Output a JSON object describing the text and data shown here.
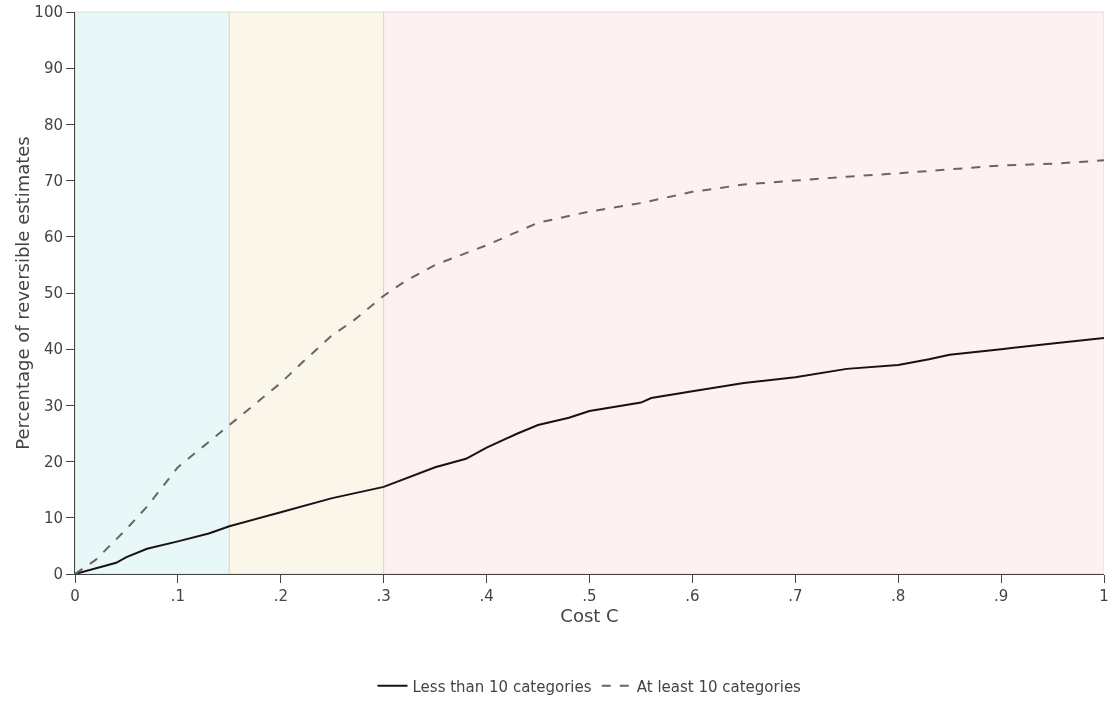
{
  "chart_data": {
    "type": "line",
    "xlabel": "Cost C",
    "ylabel": "Percentage of reversible estimates",
    "series": [
      {
        "name": "Less than 10 categories",
        "color": "#1a1018",
        "line_style": "solid",
        "x": [
          0,
          0.04,
          0.05,
          0.07,
          0.1,
          0.13,
          0.15,
          0.2,
          0.25,
          0.3,
          0.35,
          0.38,
          0.4,
          0.43,
          0.45,
          0.48,
          0.5,
          0.55,
          0.56,
          0.6,
          0.65,
          0.7,
          0.75,
          0.8,
          0.83,
          0.85,
          0.9,
          0.95,
          1
        ],
        "values": [
          0,
          2,
          3,
          4.5,
          5.8,
          7.2,
          8.5,
          11,
          13.5,
          15.5,
          19,
          20.5,
          22.5,
          25,
          26.5,
          27.8,
          29,
          30.5,
          31.3,
          32.5,
          34,
          35,
          36.5,
          37.2,
          38.2,
          39,
          40,
          41,
          42
        ]
      },
      {
        "name": "At least 10 categories",
        "color": "#6a6468",
        "line_style": "dashed",
        "x": [
          0,
          0.02,
          0.05,
          0.07,
          0.1,
          0.12,
          0.15,
          0.17,
          0.2,
          0.22,
          0.25,
          0.27,
          0.3,
          0.32,
          0.35,
          0.4,
          0.45,
          0.5,
          0.55,
          0.6,
          0.65,
          0.7,
          0.75,
          0.8,
          0.85,
          0.9,
          0.95,
          1
        ],
        "values": [
          0,
          2.5,
          8,
          12,
          19,
          22,
          26.5,
          29.5,
          34,
          37.5,
          42.5,
          45,
          49.5,
          52,
          55,
          58.5,
          62.5,
          64.5,
          66,
          68,
          69.3,
          70,
          70.7,
          71.3,
          72,
          72.7,
          73,
          73.6
        ]
      }
    ],
    "bands": [
      {
        "axis": "x",
        "from": 0,
        "to": 0.15,
        "color": "#e8f7f7"
      },
      {
        "axis": "x",
        "from": 0.15,
        "to": 0.3,
        "color": "#fbf6ea"
      },
      {
        "axis": "x",
        "from": 0.3,
        "to": 1,
        "color": "#fdf1f1"
      }
    ],
    "xlim": [
      0,
      1
    ],
    "xticks": [
      0,
      {
        "value": 0.1,
        "label": ".1"
      },
      {
        "value": 0.2,
        "label": ".2"
      },
      {
        "value": 0.3,
        "label": ".3"
      },
      {
        "value": 0.4,
        "label": ".4"
      },
      {
        "value": 0.5,
        "label": ".5"
      },
      {
        "value": 0.6,
        "label": ".6"
      },
      {
        "value": 0.7,
        "label": ".7"
      },
      {
        "value": 0.8,
        "label": ".8"
      },
      {
        "value": 0.9,
        "label": ".9"
      },
      1
    ],
    "ylim": [
      0,
      100
    ],
    "yticks": [
      0,
      10,
      20,
      30,
      40,
      50,
      60,
      70,
      80,
      90,
      100
    ],
    "grid": false,
    "legend": "bottom",
    "marker": "none"
  }
}
